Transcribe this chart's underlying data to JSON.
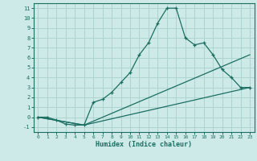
{
  "xlabel": "Humidex (Indice chaleur)",
  "bg_color": "#ceeae8",
  "grid_color": "#aed4d0",
  "line_color": "#1a6e62",
  "xlim": [
    -0.5,
    23.5
  ],
  "ylim": [
    -1.5,
    11.5
  ],
  "xticks": [
    0,
    1,
    2,
    3,
    4,
    5,
    6,
    7,
    8,
    9,
    10,
    11,
    12,
    13,
    14,
    15,
    16,
    17,
    18,
    19,
    20,
    21,
    22,
    23
  ],
  "yticks": [
    -1,
    0,
    1,
    2,
    3,
    4,
    5,
    6,
    7,
    8,
    9,
    10,
    11
  ],
  "line1_x": [
    0,
    1,
    2,
    3,
    4,
    5,
    6,
    7,
    8,
    9,
    10,
    11,
    12,
    13,
    14,
    15,
    16,
    17,
    18,
    19,
    20,
    21,
    22,
    23
  ],
  "line1_y": [
    0,
    0,
    -0.3,
    -0.7,
    -0.8,
    -0.8,
    1.5,
    1.8,
    2.5,
    3.5,
    4.5,
    6.3,
    7.5,
    9.5,
    11,
    11,
    8,
    7.3,
    7.5,
    6.3,
    4.8,
    4.0,
    3.0,
    3.0
  ],
  "line2_x": [
    0,
    5,
    23
  ],
  "line2_y": [
    0,
    -0.8,
    3.0
  ],
  "line3_x": [
    0,
    5,
    23
  ],
  "line3_y": [
    0,
    -0.8,
    6.3
  ],
  "marker": "+"
}
